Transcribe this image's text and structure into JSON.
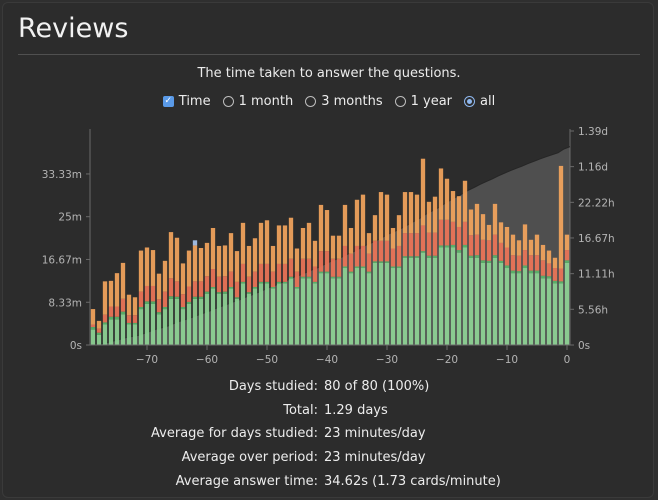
{
  "title": "Reviews",
  "subtitle": "The time taken to answer the questions.",
  "controls": {
    "time_label": "Time",
    "time_checked": true,
    "ranges": [
      {
        "label": "1 month",
        "selected": false
      },
      {
        "label": "3 months",
        "selected": false
      },
      {
        "label": "1 year",
        "selected": false
      },
      {
        "label": "all",
        "selected": true
      }
    ]
  },
  "chart_data": {
    "type": "bar",
    "stacked": true,
    "x_ticks": [
      "−70",
      "−60",
      "−50",
      "−40",
      "−30",
      "−20",
      "−10",
      "0"
    ],
    "x_tick_values": [
      -70,
      -60,
      -50,
      -40,
      -30,
      -20,
      -10,
      0
    ],
    "xlim": [
      -79,
      0
    ],
    "y_ticks": [
      "0s",
      "8.33m",
      "16.67m",
      "25m",
      "33.33m"
    ],
    "y_tick_values": [
      0,
      8.33,
      16.67,
      25,
      33.33
    ],
    "ylim": [
      0,
      41.7
    ],
    "y2_ticks": [
      "0s",
      "5.56h",
      "11.11h",
      "16.67h",
      "22.22h",
      "1.16d",
      "1.39d"
    ],
    "y2_tick_values": [
      0,
      5.56,
      11.11,
      16.67,
      22.22,
      27.78,
      33.33
    ],
    "y2lim": [
      0,
      33.33
    ],
    "colors": {
      "mature": "#8fd596",
      "young": "#5ab56a",
      "relearn": "#ee7558",
      "learn": "#f4a55d",
      "filtered": "#a7c4ee",
      "cumulative_fill": "#6d6d6d",
      "cumulative_line": "#262626"
    },
    "x": [
      -79,
      -78,
      -77,
      -76,
      -75,
      -74,
      -73,
      -72,
      -71,
      -70,
      -69,
      -68,
      -67,
      -66,
      -65,
      -64,
      -63,
      -62,
      -61,
      -60,
      -59,
      -58,
      -57,
      -56,
      -55,
      -54,
      -53,
      -52,
      -51,
      -50,
      -49,
      -48,
      -47,
      -46,
      -45,
      -44,
      -43,
      -42,
      -41,
      -40,
      -39,
      -38,
      -37,
      -36,
      -35,
      -34,
      -33,
      -32,
      -31,
      -30,
      -29,
      -28,
      -27,
      -26,
      -25,
      -24,
      -23,
      -22,
      -21,
      -20,
      -19,
      -18,
      -17,
      -16,
      -15,
      -14,
      -13,
      -12,
      -11,
      -10,
      -9,
      -8,
      -7,
      -6,
      -5,
      -4,
      -3,
      -2,
      -1,
      0
    ],
    "series": [
      {
        "key": "mature",
        "values": [
          3,
          2,
          4,
          5,
          5,
          6,
          4,
          4,
          7,
          8,
          8,
          6,
          7,
          9,
          9,
          7,
          8,
          9,
          9,
          10,
          11,
          10,
          10,
          11,
          9,
          12,
          10,
          11,
          12,
          12,
          11,
          12,
          12,
          13,
          11,
          13,
          13,
          12,
          14,
          14,
          13,
          13,
          15,
          14,
          15,
          15,
          14,
          16,
          16,
          16,
          15,
          15,
          17,
          17,
          17,
          18,
          17,
          17,
          19,
          19,
          19,
          18,
          19,
          17,
          17,
          16,
          16,
          17,
          16,
          15,
          14,
          14,
          15,
          14,
          14,
          13,
          13,
          12,
          12,
          16
        ]
      },
      {
        "key": "young",
        "values": [
          0.5,
          0.4,
          0.4,
          0.5,
          0.5,
          0.5,
          0.3,
          0.3,
          0.4,
          0.5,
          0.5,
          0.4,
          0.4,
          0.5,
          0.4,
          0.4,
          0.4,
          0.4,
          0.4,
          0.4,
          0.3,
          0.3,
          0.4,
          0.3,
          0.3,
          0.3,
          0.3,
          0.3,
          0.3,
          0.3,
          0.3,
          0.3,
          0.3,
          0.3,
          0.3,
          0.3,
          0.3,
          0.3,
          0.3,
          0.3,
          0.3,
          0.3,
          0.3,
          0.3,
          0.3,
          0.3,
          0.3,
          0.3,
          0.3,
          0.3,
          0.3,
          0.3,
          0.3,
          0.3,
          0.3,
          0.3,
          0.4,
          0.4,
          0.4,
          0.4,
          0.5,
          0.5,
          0.5,
          0.4,
          0.5,
          0.5,
          0.4,
          0.5,
          0.4,
          0.5,
          0.5,
          0.4,
          0.5,
          0.5,
          0.5,
          0.5,
          0.4,
          0.5,
          0.4,
          0.5
        ]
      },
      {
        "key": "relearn",
        "values": [
          0.5,
          0.8,
          1.5,
          2,
          2,
          2.5,
          1.5,
          1.5,
          3,
          3,
          3,
          2.5,
          3,
          3.5,
          3,
          2.5,
          3,
          3,
          3,
          3,
          3.5,
          3,
          3,
          3,
          3,
          3.5,
          3,
          3,
          3.5,
          3.5,
          3,
          3.5,
          3.5,
          3.5,
          3,
          3.5,
          3.5,
          3,
          4,
          4,
          3.5,
          3.5,
          4,
          3.5,
          4,
          4,
          3.5,
          4,
          4,
          4,
          3.5,
          4,
          4.5,
          4.5,
          4.5,
          5,
          4.5,
          4.5,
          5,
          5,
          4.5,
          4.5,
          4.5,
          4,
          4,
          4,
          4,
          4,
          3.5,
          3.5,
          3,
          3,
          3,
          3,
          3,
          3,
          2.5,
          2.5,
          2.5,
          2
        ]
      },
      {
        "key": "learn",
        "values": [
          3,
          1.5,
          6.5,
          5,
          6.5,
          7,
          4,
          3.5,
          8,
          7.5,
          7,
          5,
          6,
          9,
          8.5,
          6,
          7,
          7,
          6.5,
          6.5,
          8,
          6,
          6,
          7.5,
          6,
          8,
          6,
          6.5,
          8,
          8.5,
          5,
          7.5,
          7.5,
          8,
          4.5,
          6,
          7,
          5,
          9,
          8,
          4.5,
          4.5,
          8,
          5,
          9,
          10,
          4,
          5,
          9.5,
          9,
          4,
          6,
          8,
          8,
          7.5,
          13,
          6,
          7,
          10,
          8,
          6,
          6,
          8,
          5,
          6,
          5,
          3,
          6,
          4,
          4,
          4,
          3,
          5,
          3,
          4,
          3,
          2.5,
          2,
          20,
          3
        ]
      },
      {
        "key": "filtered",
        "values": [
          0,
          0,
          0,
          0,
          0,
          0,
          0,
          0,
          0,
          0,
          0,
          0,
          0,
          0,
          0,
          0,
          0,
          1,
          0,
          0,
          0,
          0,
          0,
          0,
          0,
          0,
          0,
          0,
          0,
          0,
          0,
          0,
          0,
          0,
          0,
          0,
          0,
          0,
          0,
          0,
          0,
          0,
          0,
          0,
          0,
          0,
          0,
          0,
          0,
          0,
          0,
          0,
          0,
          0,
          0,
          0,
          0,
          0,
          0,
          0,
          0,
          0,
          0,
          0,
          0,
          0,
          0,
          0,
          0,
          0,
          0,
          0,
          0,
          0,
          0,
          0,
          0,
          0,
          0,
          0
        ]
      }
    ],
    "cumulative_end": 30.9
  },
  "stats": [
    {
      "label": "Days studied:",
      "value": "80 of 80 (100%)"
    },
    {
      "label": "Total:",
      "value": "1.29 days"
    },
    {
      "label": "Average for days studied:",
      "value": "23 minutes/day"
    },
    {
      "label": "Average over period:",
      "value": "23 minutes/day"
    },
    {
      "label": "Average answer time:",
      "value": "34.62s (1.73 cards/minute)"
    }
  ]
}
